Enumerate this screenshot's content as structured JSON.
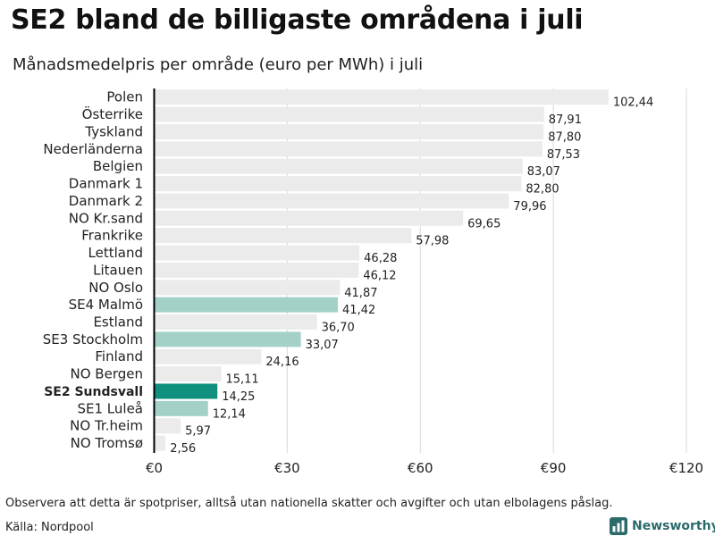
{
  "header": {
    "title": "SE2 bland de billigaste områdena i juli",
    "subtitle": "Månadsmedelpris per område (euro per MWh) i juli"
  },
  "footer": {
    "note": "Observera att detta är spotpriser, alltså utan nationella skatter och avgifter och utan elbolagens påslag.",
    "source": "Källa: Nordpool",
    "brand": "Newsworthy"
  },
  "colors": {
    "bar_default": "#ebebeb",
    "bar_se_light": "#a3d1c8",
    "bar_highlight": "#0f8f7e",
    "grid": "#d9d9d9",
    "axis": "#000000",
    "brand": "#2a6b6a"
  },
  "chart_data": {
    "type": "bar",
    "orientation": "horizontal",
    "title": "SE2 bland de billigaste områdena i juli",
    "subtitle": "Månadsmedelpris per område (euro per MWh) i juli",
    "xlabel": "",
    "ylabel": "",
    "xlim": [
      0,
      120
    ],
    "x_ticks": [
      0,
      30,
      60,
      90,
      120
    ],
    "x_tick_labels": [
      "€0",
      "€30",
      "€60",
      "€90",
      "€120"
    ],
    "grid": true,
    "categories": [
      "Polen",
      "Österrike",
      "Tyskland",
      "Nederländerna",
      "Belgien",
      "Danmark  1",
      "Danmark  2",
      "NO Kr.sand",
      "Frankrike",
      "Lettland",
      "Litauen",
      "NO Oslo",
      "SE4  Malmö",
      "Estland",
      "SE3  Stockholm",
      "Finland",
      "NO Bergen",
      "SE2 Sundsvall",
      "SE1  Luleå",
      "NO Tr.heim",
      "NO Tromsø"
    ],
    "values": [
      102.44,
      87.91,
      87.8,
      87.53,
      83.07,
      82.8,
      79.96,
      69.65,
      57.98,
      46.28,
      46.12,
      41.87,
      41.42,
      36.7,
      33.07,
      24.16,
      15.11,
      14.25,
      12.14,
      5.97,
      2.56
    ],
    "value_labels": [
      "102,44",
      "87,91",
      "87,80",
      "87,53",
      "83,07",
      "82,80",
      "79,96",
      "69,65",
      "57,98",
      "46,28",
      "46,12",
      "41,87",
      "41,42",
      "36,70",
      "33,07",
      "24,16",
      "15,11",
      "14,25",
      "12,14",
      "5,97",
      "2,56"
    ],
    "bar_style": [
      "default",
      "default",
      "default",
      "default",
      "default",
      "default",
      "default",
      "default",
      "default",
      "default",
      "default",
      "default",
      "se",
      "default",
      "se",
      "default",
      "default",
      "highlight",
      "se",
      "default",
      "default"
    ],
    "highlighted_category": "SE2 Sundsvall"
  }
}
